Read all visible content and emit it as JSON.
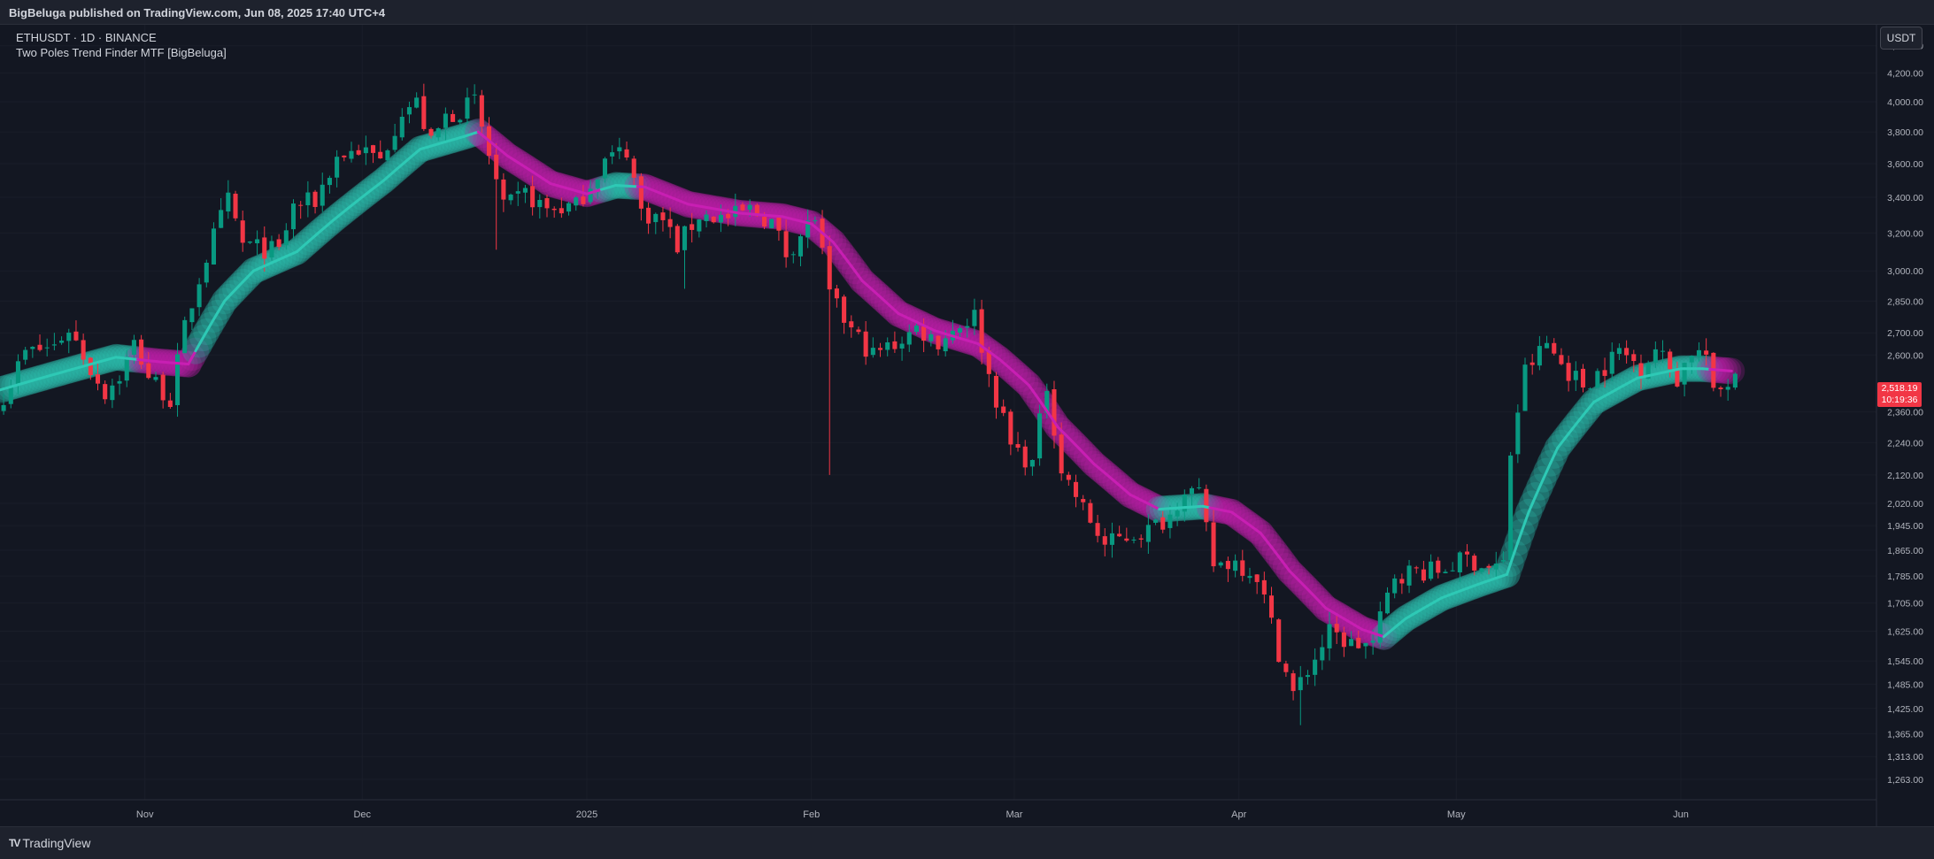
{
  "header": {
    "published": "BigBeluga published on TradingView.com, Jun 08, 2025 17:40 UTC+4"
  },
  "legend": {
    "symbol_line": "ETHUSDT · 1D · BINANCE",
    "indicator": "Two Poles Trend Finder MTF [BigBeluga]"
  },
  "price_scale": {
    "currency": "USDT",
    "last_price": "2,518.19",
    "countdown": "10:19:36"
  },
  "footer": {
    "brand": "TradingView"
  },
  "colors": {
    "background": "#131722",
    "bull_candle": "#089981",
    "bear_candle": "#f23645",
    "trend_up": "#2ec9b5",
    "trend_down": "#c81fb3",
    "price_tag": "#f23645"
  },
  "chart_data": {
    "type": "candlestick",
    "series_name": "ETHUSDT · 1D · BINANCE",
    "y_scale": "log",
    "ylim": [
      1220,
      4560
    ],
    "y_ticks": [
      {
        "value": 4400,
        "label": "4,400.00"
      },
      {
        "value": 4200,
        "label": "4,200.00"
      },
      {
        "value": 4000,
        "label": "4,000.00"
      },
      {
        "value": 3800,
        "label": "3,800.00"
      },
      {
        "value": 3600,
        "label": "3,600.00"
      },
      {
        "value": 3400,
        "label": "3,400.00"
      },
      {
        "value": 3200,
        "label": "3,200.00"
      },
      {
        "value": 3000,
        "label": "3,000.00"
      },
      {
        "value": 2850,
        "label": "2,850.00"
      },
      {
        "value": 2700,
        "label": "2,700.00"
      },
      {
        "value": 2600,
        "label": "2,600.00"
      },
      {
        "value": 2360,
        "label": "2,360.00"
      },
      {
        "value": 2240,
        "label": "2,240.00"
      },
      {
        "value": 2120,
        "label": "2,120.00"
      },
      {
        "value": 2020,
        "label": "2,020.00"
      },
      {
        "value": 1945,
        "label": "1,945.00"
      },
      {
        "value": 1865,
        "label": "1,865.00"
      },
      {
        "value": 1785,
        "label": "1,785.00"
      },
      {
        "value": 1705,
        "label": "1,705.00"
      },
      {
        "value": 1625,
        "label": "1,625.00"
      },
      {
        "value": 1545,
        "label": "1,545.00"
      },
      {
        "value": 1485,
        "label": "1,485.00"
      },
      {
        "value": 1425,
        "label": "1,425.00"
      },
      {
        "value": 1365,
        "label": "1,365.00"
      },
      {
        "value": 1313,
        "label": "1,313.00"
      },
      {
        "value": 1263,
        "label": "1,263.00"
      }
    ],
    "x_ticks": [
      {
        "date": "2024-11-01",
        "label": "Nov"
      },
      {
        "date": "2024-12-01",
        "label": "Dec"
      },
      {
        "date": "2025-01-01",
        "label": "2025"
      },
      {
        "date": "2025-02-01",
        "label": "Feb"
      },
      {
        "date": "2025-03-01",
        "label": "Mar"
      },
      {
        "date": "2025-04-01",
        "label": "Apr"
      },
      {
        "date": "2025-05-01",
        "label": "May"
      },
      {
        "date": "2025-06-01",
        "label": "Jun"
      }
    ],
    "xlim": [
      "2024-10-12",
      "2025-06-28"
    ],
    "last_price": 2518.19,
    "close_anchors": [
      [
        "2024-10-12",
        2430
      ],
      [
        "2024-10-15",
        2610
      ],
      [
        "2024-10-19",
        2640
      ],
      [
        "2024-10-21",
        2720
      ],
      [
        "2024-10-24",
        2540
      ],
      [
        "2024-10-26",
        2440
      ],
      [
        "2024-10-28",
        2510
      ],
      [
        "2024-10-30",
        2650
      ],
      [
        "2024-11-01",
        2510
      ],
      [
        "2024-11-04",
        2410
      ],
      [
        "2024-11-06",
        2720
      ],
      [
        "2024-11-08",
        2960
      ],
      [
        "2024-11-10",
        3180
      ],
      [
        "2024-11-12",
        3380
      ],
      [
        "2024-11-14",
        3140
      ],
      [
        "2024-11-16",
        3120
      ],
      [
        "2024-11-19",
        3100
      ],
      [
        "2024-11-21",
        3350
      ],
      [
        "2024-11-24",
        3380
      ],
      [
        "2024-11-27",
        3640
      ],
      [
        "2024-11-30",
        3690
      ],
      [
        "2024-12-03",
        3620
      ],
      [
        "2024-12-06",
        3950
      ],
      [
        "2024-12-08",
        3990
      ],
      [
        "2024-12-10",
        3720
      ],
      [
        "2024-12-12",
        3900
      ],
      [
        "2024-12-15",
        3970
      ],
      [
        "2024-12-16",
        4000
      ],
      [
        "2024-12-18",
        3650
      ],
      [
        "2024-12-20",
        3330
      ],
      [
        "2024-12-23",
        3420
      ],
      [
        "2024-12-26",
        3330
      ],
      [
        "2024-12-30",
        3350
      ],
      [
        "2025-01-03",
        3620
      ],
      [
        "2025-01-06",
        3690
      ],
      [
        "2025-01-08",
        3320
      ],
      [
        "2025-01-11",
        3270
      ],
      [
        "2025-01-13",
        3130
      ],
      [
        "2025-01-16",
        3300
      ],
      [
        "2025-01-20",
        3280
      ],
      [
        "2025-01-23",
        3330
      ],
      [
        "2025-01-26",
        3260
      ],
      [
        "2025-01-28",
        3090
      ],
      [
        "2025-02-01",
        3290
      ],
      [
        "2025-02-03",
        2870
      ],
      [
        "2025-02-06",
        2710
      ],
      [
        "2025-02-09",
        2600
      ],
      [
        "2025-02-12",
        2650
      ],
      [
        "2025-02-15",
        2720
      ],
      [
        "2025-02-18",
        2660
      ],
      [
        "2025-02-21",
        2740
      ],
      [
        "2025-02-23",
        2780
      ],
      [
        "2025-02-25",
        2510
      ],
      [
        "2025-02-28",
        2230
      ],
      [
        "2025-03-03",
        2160
      ],
      [
        "2025-03-05",
        2470
      ],
      [
        "2025-03-07",
        2140
      ],
      [
        "2025-03-10",
        2000
      ],
      [
        "2025-03-13",
        1880
      ],
      [
        "2025-03-16",
        1910
      ],
      [
        "2025-03-19",
        1930
      ],
      [
        "2025-03-22",
        1980
      ],
      [
        "2025-03-24",
        2080
      ],
      [
        "2025-03-26",
        2040
      ],
      [
        "2025-03-28",
        1820
      ],
      [
        "2025-03-31",
        1830
      ],
      [
        "2025-04-03",
        1790
      ],
      [
        "2025-04-06",
        1570
      ],
      [
        "2025-04-08",
        1460
      ],
      [
        "2025-04-10",
        1520
      ],
      [
        "2025-04-13",
        1620
      ],
      [
        "2025-04-16",
        1590
      ],
      [
        "2025-04-19",
        1590
      ],
      [
        "2025-04-22",
        1790
      ],
      [
        "2025-04-25",
        1800
      ],
      [
        "2025-04-28",
        1800
      ],
      [
        "2025-05-02",
        1840
      ],
      [
        "2025-05-05",
        1810
      ],
      [
        "2025-05-07",
        1820
      ],
      [
        "2025-05-08",
        2200
      ],
      [
        "2025-05-10",
        2530
      ],
      [
        "2025-05-13",
        2650
      ],
      [
        "2025-05-15",
        2560
      ],
      [
        "2025-05-18",
        2470
      ],
      [
        "2025-05-21",
        2550
      ],
      [
        "2025-05-23",
        2620
      ],
      [
        "2025-05-26",
        2550
      ],
      [
        "2025-05-28",
        2630
      ],
      [
        "2025-05-31",
        2500
      ],
      [
        "2025-06-02",
        2620
      ],
      [
        "2025-06-04",
        2600
      ],
      [
        "2025-06-05",
        2420
      ],
      [
        "2025-06-08",
        2518
      ]
    ],
    "trend_line": [
      [
        "2024-10-12",
        2450
      ],
      [
        "2024-10-20",
        2520
      ],
      [
        "2024-10-28",
        2590
      ],
      [
        "2024-11-03",
        2570
      ],
      [
        "2024-11-07",
        2560
      ],
      [
        "2024-11-12",
        2850
      ],
      [
        "2024-11-16",
        3000
      ],
      [
        "2024-11-22",
        3100
      ],
      [
        "2024-11-27",
        3270
      ],
      [
        "2024-12-04",
        3500
      ],
      [
        "2024-12-09",
        3690
      ],
      [
        "2024-12-15",
        3770
      ],
      [
        "2024-12-17",
        3800
      ],
      [
        "2024-12-21",
        3650
      ],
      [
        "2024-12-27",
        3480
      ],
      [
        "2025-01-01",
        3420
      ],
      [
        "2025-01-05",
        3470
      ],
      [
        "2025-01-09",
        3460
      ],
      [
        "2025-01-15",
        3360
      ],
      [
        "2025-01-22",
        3310
      ],
      [
        "2025-01-28",
        3290
      ],
      [
        "2025-02-01",
        3250
      ],
      [
        "2025-02-04",
        3150
      ],
      [
        "2025-02-08",
        2950
      ],
      [
        "2025-02-13",
        2790
      ],
      [
        "2025-02-18",
        2710
      ],
      [
        "2025-02-24",
        2650
      ],
      [
        "2025-02-27",
        2580
      ],
      [
        "2025-03-03",
        2470
      ],
      [
        "2025-03-07",
        2300
      ],
      [
        "2025-03-12",
        2160
      ],
      [
        "2025-03-17",
        2050
      ],
      [
        "2025-03-21",
        2000
      ],
      [
        "2025-03-27",
        2010
      ],
      [
        "2025-03-31",
        1990
      ],
      [
        "2025-04-04",
        1920
      ],
      [
        "2025-04-08",
        1800
      ],
      [
        "2025-04-13",
        1690
      ],
      [
        "2025-04-18",
        1630
      ],
      [
        "2025-04-21",
        1610
      ],
      [
        "2025-04-24",
        1660
      ],
      [
        "2025-04-29",
        1720
      ],
      [
        "2025-05-04",
        1760
      ],
      [
        "2025-05-08",
        1790
      ],
      [
        "2025-05-11",
        1990
      ],
      [
        "2025-05-15",
        2220
      ],
      [
        "2025-05-20",
        2400
      ],
      [
        "2025-05-26",
        2500
      ],
      [
        "2025-06-01",
        2540
      ],
      [
        "2025-06-04",
        2540
      ],
      [
        "2025-06-08",
        2530
      ]
    ],
    "trend_direction_changes": [
      [
        "2024-10-12",
        "up"
      ],
      [
        "2024-10-31",
        "down"
      ],
      [
        "2024-11-08",
        "up"
      ],
      [
        "2024-12-17",
        "down"
      ],
      [
        "2025-01-03",
        "up"
      ],
      [
        "2025-01-08",
        "down"
      ],
      [
        "2025-03-21",
        "up"
      ],
      [
        "2025-03-28",
        "down"
      ],
      [
        "2025-04-21",
        "up"
      ],
      [
        "2025-06-05",
        "down"
      ]
    ],
    "wick_spikes": [
      [
        "2025-02-03",
        "low",
        2120
      ],
      [
        "2025-04-09",
        "low",
        1385
      ],
      [
        "2024-12-19",
        "low",
        3110
      ],
      [
        "2025-01-14",
        "low",
        2910
      ]
    ]
  }
}
